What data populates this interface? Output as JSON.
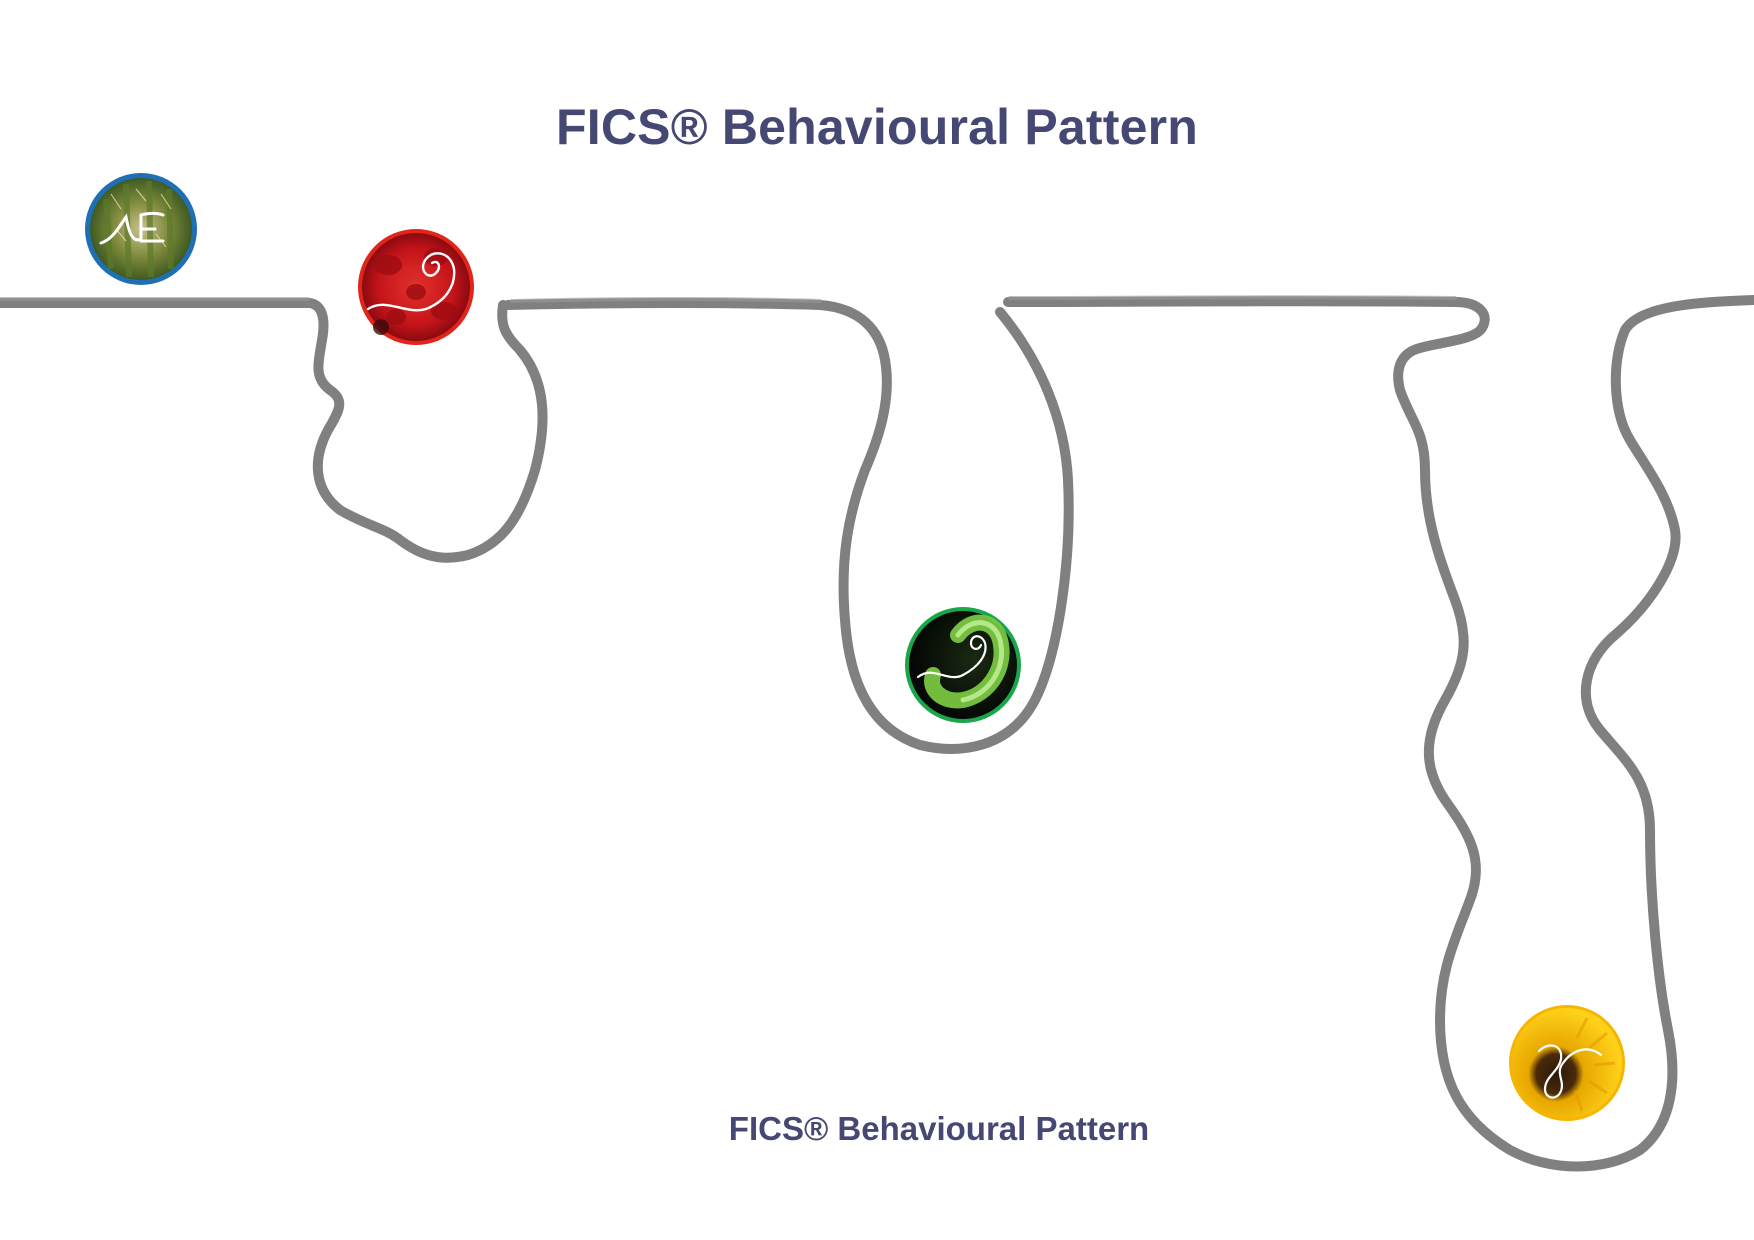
{
  "title": "FICS® Behavioural Pattern",
  "footer": "FICS® Behavioural Pattern",
  "colors": {
    "text": "#454872",
    "path": "#808080",
    "cactus_ring": "#1f6fb5",
    "flower_ring": "#e1251b",
    "fern_ring": "#1aa64a",
    "sunflower_ring": "#f7b500"
  },
  "icons": [
    "cactus-icon",
    "red-flower-icon",
    "fern-icon",
    "sunflower-icon"
  ]
}
